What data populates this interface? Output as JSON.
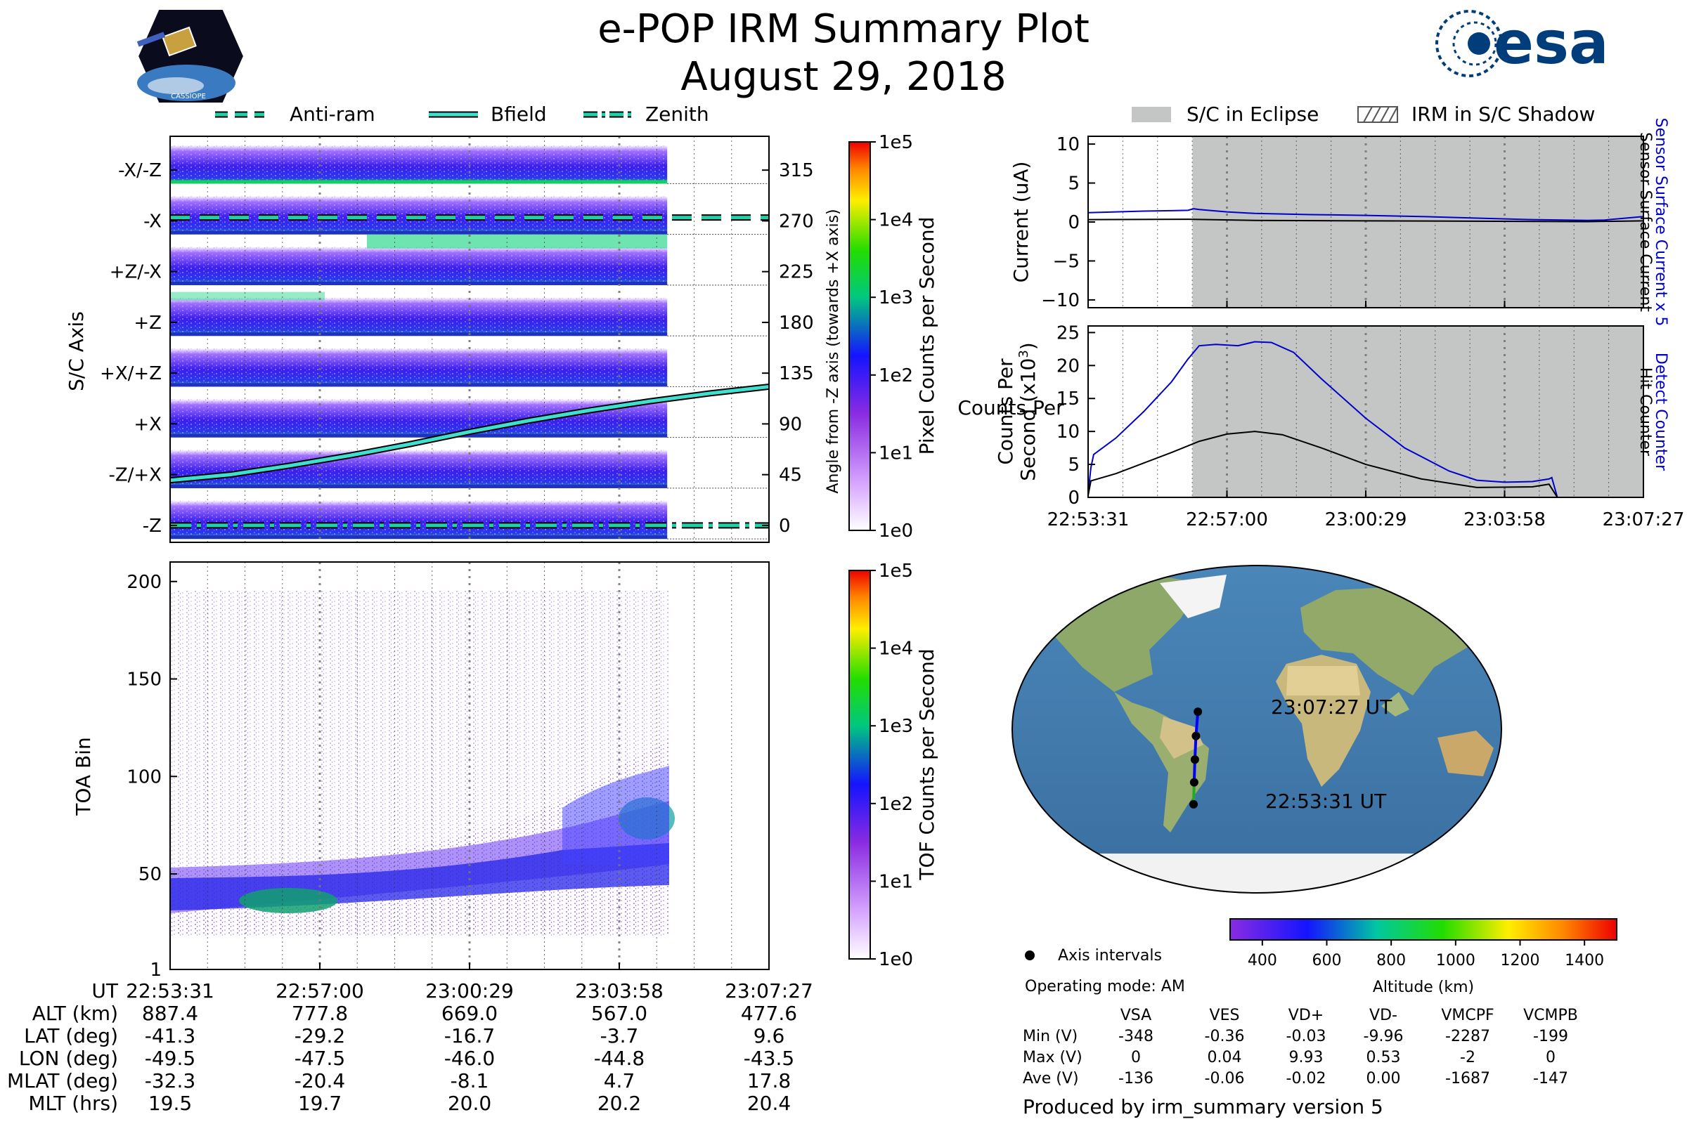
{
  "title": "e-POP IRM Summary Plot",
  "subtitle": "August 29, 2018",
  "logos": {
    "mission_badge": "CASSIOPE",
    "esa_wordmark": "esa"
  },
  "legend_top_left": [
    "Anti-ram",
    "Bfield",
    "Zenith"
  ],
  "legend_top_right": [
    "S/C in Eclipse",
    "IRM in S/C Shadow"
  ],
  "colors": {
    "antiram": "#20d0a8",
    "bfield": "#40e0d0",
    "zenith": "#20d0a8",
    "sensor_blue": "#0000cc",
    "black": "#000000",
    "eclipse": "#c4c6c6",
    "track_blue": "#0000ff",
    "track_green": "#22aa22"
  },
  "time_ticks": [
    "22:53:31",
    "22:57:00",
    "23:00:29",
    "23:03:58",
    "23:07:27"
  ],
  "chart_data": [
    {
      "type": "heatmap",
      "name": "pixel-map",
      "ylabel": "S/C Axis",
      "ylabel_right": "Angle from -Z axis (towards +X axis)",
      "y_categories": [
        "-X/-Z",
        "-X",
        "+Z/-X",
        "+Z",
        "+X/+Z",
        "+X",
        "-Z/+X",
        "-Z"
      ],
      "y_right_ticks": [
        "315",
        "270",
        "225",
        "180",
        "135",
        "90",
        "45",
        "0"
      ],
      "ylim": [
        -15,
        345
      ],
      "colorbar": {
        "label": "Pixel Counts per Second",
        "ticks": [
          "1e5",
          "1e4",
          "1e3",
          "1e2",
          "1e1",
          "1e0"
        ]
      },
      "data_end_fraction": 0.83,
      "lines": [
        {
          "name": "Anti-ram",
          "style": "dashed",
          "points": [
            [
              0,
              273
            ],
            [
              1,
              273
            ]
          ]
        },
        {
          "name": "Bfield",
          "style": "solid",
          "points": [
            [
              0,
              40
            ],
            [
              0.1,
              45
            ],
            [
              0.2,
              53
            ],
            [
              0.3,
              62
            ],
            [
              0.4,
              72
            ],
            [
              0.5,
              83
            ],
            [
              0.6,
              93
            ],
            [
              0.7,
              102
            ],
            [
              0.8,
              110
            ],
            [
              0.9,
              117
            ],
            [
              1,
              123
            ]
          ]
        },
        {
          "name": "Zenith",
          "style": "dashdot",
          "points": [
            [
              0,
              0
            ],
            [
              1,
              0
            ]
          ]
        }
      ]
    },
    {
      "type": "heatmap",
      "name": "toa-map",
      "ylabel": "TOA Bin",
      "y_ticks": [
        "200",
        "150",
        "100",
        "50",
        "1"
      ],
      "ylim": [
        1,
        210
      ],
      "colorbar": {
        "label": "TOF Counts per Second",
        "ticks": [
          "1e5",
          "1e4",
          "1e3",
          "1e2",
          "1e1",
          "1e0"
        ]
      },
      "data_end_fraction": 0.83
    },
    {
      "type": "line",
      "name": "current",
      "ylabel": "Current (uA)",
      "right_labels": [
        "Sensor Surface Current x 5",
        "Sensor Surface Current"
      ],
      "y_ticks": [
        "10",
        "5",
        "0",
        "−5",
        "−10"
      ],
      "ylim": [
        -11,
        11
      ],
      "eclipse_start_fraction": 0.188,
      "series": [
        {
          "name": "Sensor Surface Current x 5",
          "points": [
            [
              0,
              1.2
            ],
            [
              0.05,
              1.3
            ],
            [
              0.1,
              1.4
            ],
            [
              0.15,
              1.45
            ],
            [
              0.18,
              1.5
            ],
            [
              0.19,
              1.7
            ],
            [
              0.2,
              1.6
            ],
            [
              0.25,
              1.3
            ],
            [
              0.3,
              1.1
            ],
            [
              0.4,
              0.95
            ],
            [
              0.5,
              0.85
            ],
            [
              0.6,
              0.7
            ],
            [
              0.7,
              0.5
            ],
            [
              0.8,
              0.3
            ],
            [
              0.9,
              0.2
            ],
            [
              0.93,
              0.25
            ],
            [
              1,
              0.7
            ]
          ]
        },
        {
          "name": "Sensor Surface Current",
          "points": [
            [
              0,
              0.3
            ],
            [
              0.18,
              0.35
            ],
            [
              0.3,
              0.2
            ],
            [
              0.5,
              0.15
            ],
            [
              0.7,
              0.1
            ],
            [
              0.9,
              0.05
            ],
            [
              1,
              0.15
            ]
          ]
        }
      ]
    },
    {
      "type": "line",
      "name": "counts",
      "ylabel": "Counts Per Second (x10³)",
      "ylabel_lines": [
        "Counts Per",
        "Second (x10",
        "3",
        ")"
      ],
      "right_labels": [
        "Detect Counter",
        "Hit Counter"
      ],
      "y_ticks": [
        "25",
        "20",
        "15",
        "10",
        "5",
        "0"
      ],
      "ylim": [
        0,
        26
      ],
      "series": [
        {
          "name": "Detect Counter",
          "points": [
            [
              0,
              0.5
            ],
            [
              0.005,
              4.5
            ],
            [
              0.01,
              6.5
            ],
            [
              0.05,
              9
            ],
            [
              0.1,
              13
            ],
            [
              0.15,
              17.5
            ],
            [
              0.18,
              21
            ],
            [
              0.2,
              23
            ],
            [
              0.23,
              23.2
            ],
            [
              0.27,
              23
            ],
            [
              0.3,
              23.6
            ],
            [
              0.33,
              23.5
            ],
            [
              0.37,
              22
            ],
            [
              0.42,
              18
            ],
            [
              0.5,
              12
            ],
            [
              0.57,
              7.5
            ],
            [
              0.65,
              4
            ],
            [
              0.7,
              2.6
            ],
            [
              0.75,
              2.3
            ],
            [
              0.8,
              2.4
            ],
            [
              0.83,
              2.8
            ],
            [
              0.835,
              3.0
            ],
            [
              0.845,
              0
            ],
            [
              1,
              0
            ]
          ]
        },
        {
          "name": "Hit Counter",
          "points": [
            [
              0,
              0.3
            ],
            [
              0.005,
              2.5
            ],
            [
              0.05,
              3.6
            ],
            [
              0.1,
              5.2
            ],
            [
              0.15,
              6.8
            ],
            [
              0.2,
              8.5
            ],
            [
              0.25,
              9.6
            ],
            [
              0.3,
              10
            ],
            [
              0.35,
              9.5
            ],
            [
              0.42,
              7.5
            ],
            [
              0.5,
              5
            ],
            [
              0.6,
              2.8
            ],
            [
              0.7,
              1.5
            ],
            [
              0.8,
              1.6
            ],
            [
              0.83,
              2.0
            ],
            [
              0.845,
              0
            ],
            [
              1,
              0
            ]
          ]
        }
      ]
    },
    {
      "type": "scatter",
      "name": "map",
      "track_points": [
        [
          -49.5,
          -41.3
        ],
        [
          -47.5,
          -29.2
        ],
        [
          -46.0,
          -16.7
        ],
        [
          -44.8,
          -3.7
        ],
        [
          -43.5,
          9.6
        ]
      ],
      "label_start": "22:53:31 UT",
      "label_end": "23:07:27 UT",
      "colorbar": {
        "label": "Altitude (km)",
        "ticks": [
          "400",
          "600",
          "800",
          "1000",
          "1200",
          "1400"
        ],
        "range": [
          300,
          1500
        ]
      }
    }
  ],
  "ephemeris": {
    "rows": [
      {
        "label": "UT",
        "values": [
          "22:53:31",
          "22:57:00",
          "23:00:29",
          "23:03:58",
          "23:07:27"
        ]
      },
      {
        "label": "ALT (km)",
        "values": [
          "887.4",
          "777.8",
          "669.0",
          "567.0",
          "477.6"
        ]
      },
      {
        "label": "LAT (deg)",
        "values": [
          "-41.3",
          "-29.2",
          "-16.7",
          "-3.7",
          "9.6"
        ]
      },
      {
        "label": "LON (deg)",
        "values": [
          "-49.5",
          "-47.5",
          "-46.0",
          "-44.8",
          "-43.5"
        ]
      },
      {
        "label": "MLAT (deg)",
        "values": [
          "-32.3",
          "-20.4",
          "-8.1",
          "4.7",
          "17.8"
        ]
      },
      {
        "label": "MLT (hrs)",
        "values": [
          "19.5",
          "19.7",
          "20.0",
          "20.2",
          "20.4"
        ]
      }
    ]
  },
  "info": {
    "axis_intervals": "Axis intervals",
    "operating_mode": "Operating mode: AM",
    "produced_by": "Produced by irm_summary version 5"
  },
  "voltage_table": {
    "headers": [
      "VSA",
      "VES",
      "VD+",
      "VD-",
      "VMCPF",
      "VCMPB"
    ],
    "rows": [
      {
        "label": "Min (V)",
        "values": [
          "-348",
          "-0.36",
          "-0.03",
          "-9.96",
          "-2287",
          "-199"
        ]
      },
      {
        "label": "Max (V)",
        "values": [
          "0",
          "0.04",
          "9.93",
          "0.53",
          "-2",
          "0"
        ]
      },
      {
        "label": "Ave (V)",
        "values": [
          "-136",
          "-0.06",
          "-0.02",
          "0.00",
          "-1687",
          "-147"
        ]
      }
    ]
  }
}
